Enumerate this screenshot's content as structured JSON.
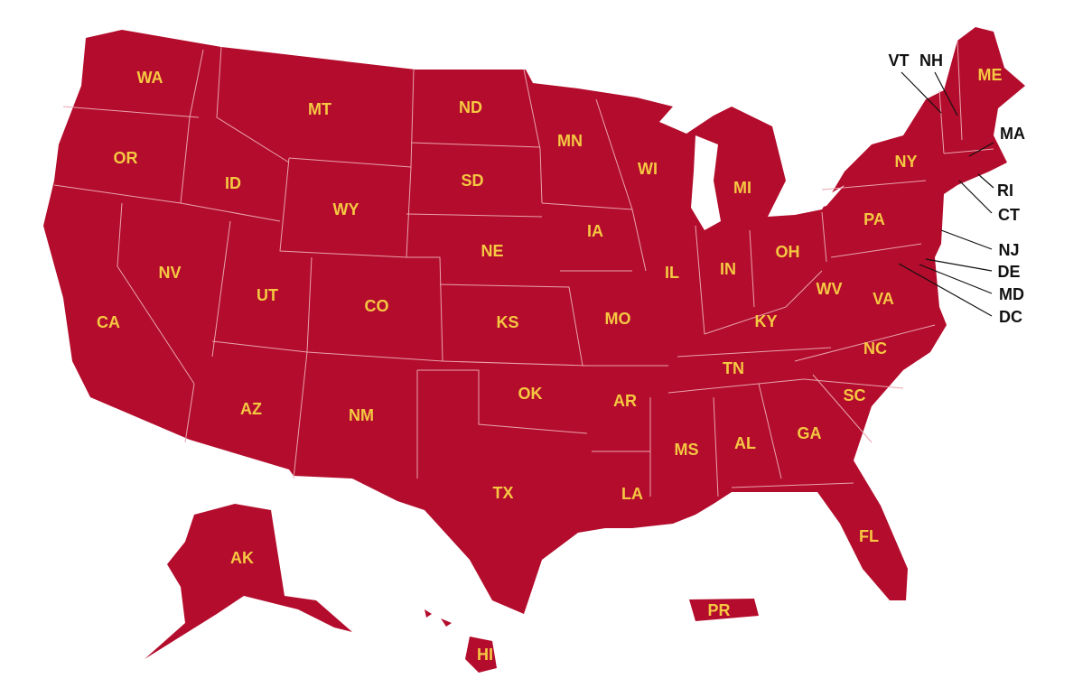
{
  "states": [
    "WA",
    "MT",
    "ND",
    "MN",
    "OR",
    "ID",
    "SD",
    "WI",
    "MI",
    "NY",
    "ME",
    "WY",
    "NE",
    "IA",
    "PA",
    "NV",
    "UT",
    "CO",
    "IL",
    "IN",
    "OH",
    "WV",
    "VA",
    "CA",
    "KS",
    "MO",
    "KY",
    "TN",
    "NC",
    "OK",
    "AR",
    "SC",
    "AZ",
    "NM",
    "GA",
    "MS",
    "AL",
    "TX",
    "LA",
    "FL",
    "AK",
    "PR",
    "HI"
  ],
  "callouts": [
    "VT",
    "NH",
    "MA",
    "RI",
    "CT",
    "NJ",
    "DE",
    "MD",
    "DC"
  ]
}
